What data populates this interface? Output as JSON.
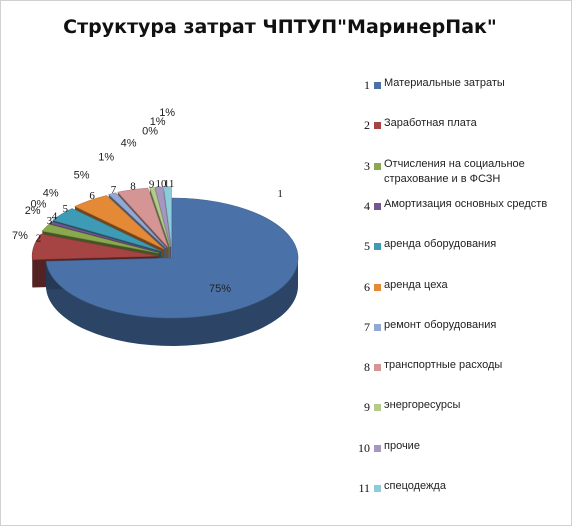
{
  "chart_data": {
    "type": "pie",
    "title": "Структура затрат ЧПТУП\"МаринерПак\"",
    "categories": [
      "1",
      "2",
      "3",
      "4",
      "5",
      "6",
      "7",
      "8",
      "9",
      "10",
      "11"
    ],
    "legend_position": "right",
    "series": [
      {
        "values": [
          75,
          7,
          2,
          0,
          4,
          5,
          1,
          4,
          0,
          1,
          1
        ],
        "percent_labels": [
          "75%",
          "7%",
          "2%",
          "0%",
          "4%",
          "5%",
          "1%",
          "4%",
          "0%",
          "1%",
          "1%"
        ]
      }
    ],
    "legend": [
      {
        "num": "1",
        "label": "Материальные затраты",
        "color": "#4a72a8"
      },
      {
        "num": "2",
        "label": "Заработная плата",
        "color": "#a54443"
      },
      {
        "num": "3",
        "label": "Отчисления на социальное страхование и в ФСЗН",
        "color": "#8aa84d"
      },
      {
        "num": "4",
        "label": "Амортизация основных средств",
        "color": "#715690"
      },
      {
        "num": "5",
        "label": "аренда оборудования",
        "color": "#3e9bb5"
      },
      {
        "num": "6",
        "label": "аренда цеха",
        "color": "#e48a37"
      },
      {
        "num": "7",
        "label": "ремонт оборудования",
        "color": "#92a9d3"
      },
      {
        "num": "8",
        "label": "транспортные расходы",
        "color": "#d69595"
      },
      {
        "num": "9",
        "label": "энергоресурсы",
        "color": "#b3cc8c"
      },
      {
        "num": "10",
        "label": "прочие",
        "color": "#a796bf"
      },
      {
        "num": "11",
        "label": "спецодежда",
        "color": "#8ccbd9"
      }
    ]
  }
}
